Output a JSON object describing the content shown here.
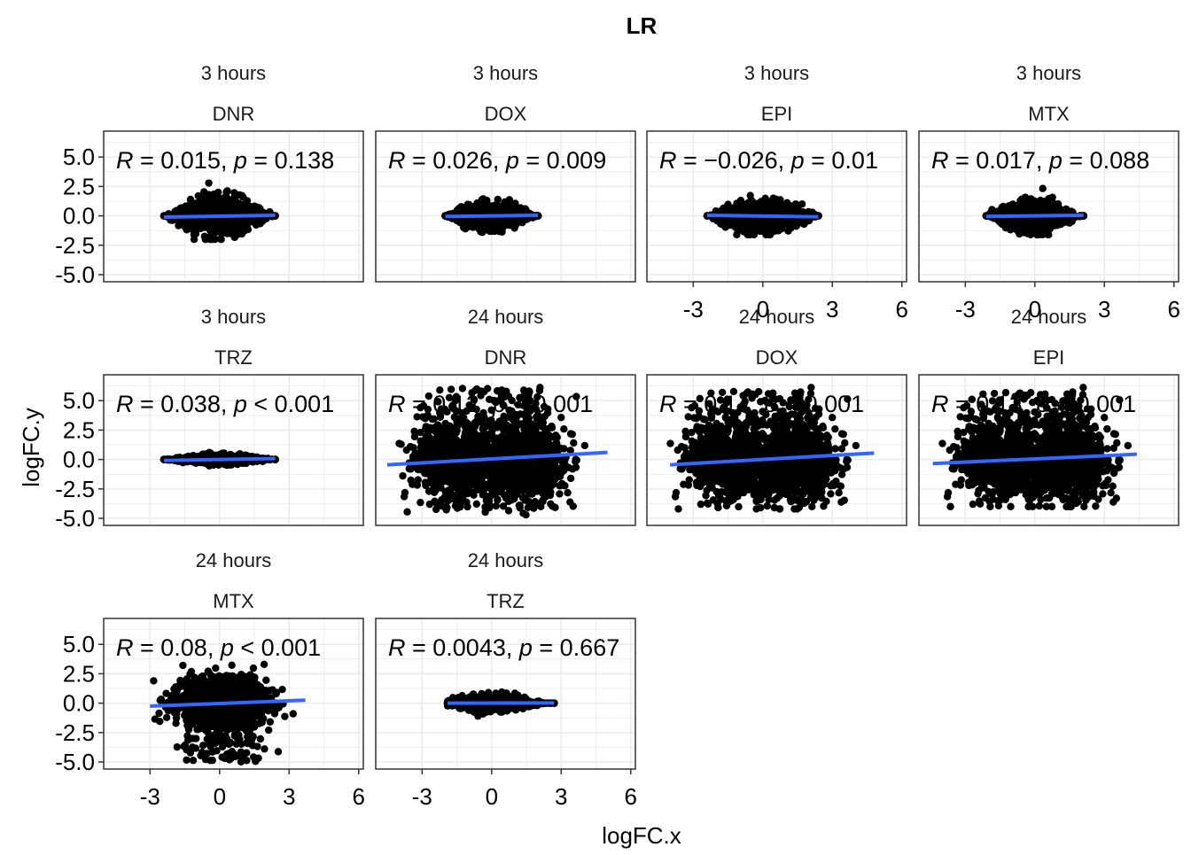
{
  "chart_data": {
    "type": "scatter",
    "title": "LR",
    "xlabel": "logFC.x",
    "ylabel": "logFC.y",
    "xlim": [
      -5,
      6.2
    ],
    "ylim": [
      -5.6,
      7.2
    ],
    "x_ticks": [
      -3,
      0,
      3,
      6
    ],
    "y_ticks": [
      5.0,
      2.5,
      0.0,
      -2.5,
      -5.0
    ],
    "y_tick_labels": [
      "5.0",
      "2.5",
      "0.0",
      "-2.5",
      "-5.0"
    ],
    "x_tick_labels": [
      "-3",
      "0",
      "3",
      "6"
    ],
    "grid": true,
    "legend": "none",
    "point_color": "#000000",
    "fit_line_color": "#3366FF",
    "panels": [
      {
        "time": "3 hours",
        "drug": "DNR",
        "stat": {
          "r": "0.015",
          "p_op": "=",
          "p": "0.138"
        },
        "points_range": {
          "x": [
            -2.4,
            2.4
          ],
          "y": [
            -2.0,
            3.3
          ]
        },
        "fit": {
          "x": [
            -2.4,
            2.4
          ],
          "y": [
            -0.1,
            0.05
          ]
        }
      },
      {
        "time": "3 hours",
        "drug": "DOX",
        "stat": {
          "r": "0.026",
          "p_op": "=",
          "p": "0.009"
        },
        "points_range": {
          "x": [
            -2.0,
            2.0
          ],
          "y": [
            -1.4,
            1.9
          ]
        },
        "fit": {
          "x": [
            -2.0,
            2.0
          ],
          "y": [
            -0.05,
            0.05
          ]
        }
      },
      {
        "time": "3 hours",
        "drug": "EPI",
        "stat": {
          "r": "−0.026",
          "p_op": "=",
          "p": "0.01"
        },
        "points_range": {
          "x": [
            -2.4,
            2.4
          ],
          "y": [
            -1.6,
            2.8
          ]
        },
        "fit": {
          "x": [
            -2.4,
            2.4
          ],
          "y": [
            0.05,
            -0.08
          ]
        }
      },
      {
        "time": "3 hours",
        "drug": "MTX",
        "stat": {
          "r": "0.017",
          "p_op": "=",
          "p": "0.088"
        },
        "points_range": {
          "x": [
            -2.1,
            2.1
          ],
          "y": [
            -1.6,
            2.4
          ]
        },
        "fit": {
          "x": [
            -2.1,
            2.1
          ],
          "y": [
            -0.05,
            0.05
          ]
        }
      },
      {
        "time": "3 hours",
        "drug": "TRZ",
        "stat": {
          "r": "0.038",
          "p_op": "<",
          "p": "0.001"
        },
        "points_range": {
          "x": [
            -2.4,
            2.4
          ],
          "y": [
            -0.6,
            0.6
          ]
        },
        "fit": {
          "x": [
            -2.4,
            2.4
          ],
          "y": [
            -0.08,
            0.08
          ]
        }
      },
      {
        "time": "24 hours",
        "drug": "DNR",
        "stat": {
          "r": "0.12",
          "p_op": "<",
          "p": "0.001"
        },
        "points_range": {
          "x": [
            -4.5,
            5.0
          ],
          "y": [
            -4.8,
            6.8
          ]
        },
        "fit": {
          "x": [
            -4.5,
            5.0
          ],
          "y": [
            -0.45,
            0.6
          ]
        }
      },
      {
        "time": "24 hours",
        "drug": "DOX",
        "stat": {
          "r": "0.14",
          "p_op": "<",
          "p": "0.001"
        },
        "points_range": {
          "x": [
            -4.5,
            4.8
          ],
          "y": [
            -4.2,
            6.5
          ]
        },
        "fit": {
          "x": [
            -4.0,
            4.8
          ],
          "y": [
            -0.45,
            0.55
          ]
        }
      },
      {
        "time": "24 hours",
        "drug": "EPI",
        "stat": {
          "r": "0.13",
          "p_op": "<",
          "p": "0.001"
        },
        "points_range": {
          "x": [
            -4.5,
            4.5
          ],
          "y": [
            -4.0,
            6.4
          ]
        },
        "fit": {
          "x": [
            -4.4,
            4.4
          ],
          "y": [
            -0.35,
            0.45
          ]
        }
      },
      {
        "time": "24 hours",
        "drug": "MTX",
        "stat": {
          "r": "0.08",
          "p_op": "<",
          "p": "0.001"
        },
        "points_range": {
          "x": [
            -3.0,
            3.7
          ],
          "y": [
            -5.1,
            3.3
          ]
        },
        "fit": {
          "x": [
            -3.0,
            3.7
          ],
          "y": [
            -0.25,
            0.25
          ]
        }
      },
      {
        "time": "24 hours",
        "drug": "TRZ",
        "stat": {
          "r": "0.0043",
          "p_op": "=",
          "p": "0.667"
        },
        "points_range": {
          "x": [
            -1.9,
            2.7
          ],
          "y": [
            -1.1,
            1.1
          ]
        },
        "fit": {
          "x": [
            -1.9,
            2.7
          ],
          "y": [
            0.0,
            0.02
          ]
        }
      }
    ]
  }
}
